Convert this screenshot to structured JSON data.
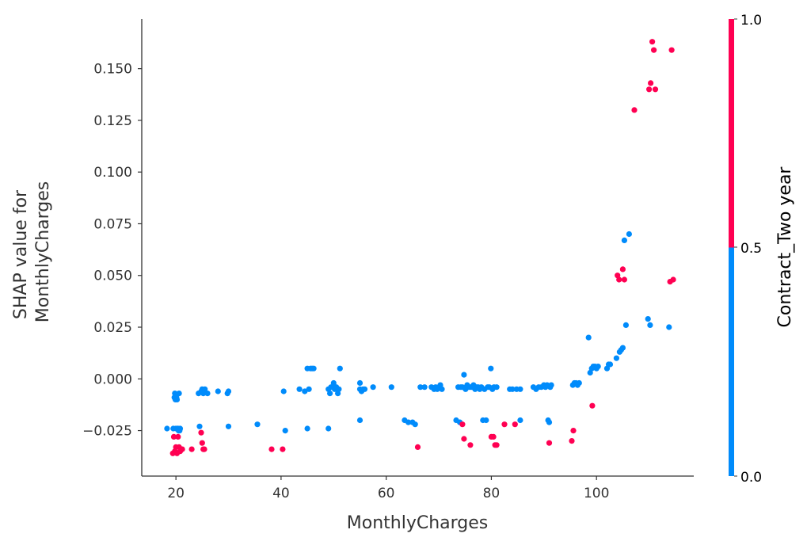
{
  "chart_data": {
    "type": "scatter",
    "title": "",
    "xlabel": "MonthlyCharges",
    "ylabel_lines": [
      "SHAP value for",
      "MonthlyCharges"
    ],
    "xlim": [
      13.5,
      118.5
    ],
    "ylim": [
      -0.047,
      0.174
    ],
    "xticks": [
      20,
      40,
      60,
      80,
      100
    ],
    "yticks": [
      -0.025,
      0.0,
      0.025,
      0.05,
      0.075,
      0.1,
      0.125,
      0.15
    ],
    "xtick_labels": [
      "20",
      "40",
      "60",
      "80",
      "100"
    ],
    "ytick_labels": [
      "−0.025",
      "0.000",
      "0.025",
      "0.050",
      "0.075",
      "0.100",
      "0.125",
      "0.150"
    ],
    "colorbar": {
      "label": "Contract_Two year",
      "ticks": [
        "0.0",
        "0.5",
        "1.0"
      ],
      "low_color": "#008bfb",
      "high_color": "#ff0052"
    },
    "series": [
      {
        "name": "Contract_Two year = 0.0",
        "color": "#008bfb",
        "points": [
          [
            18.3,
            -0.024
          ],
          [
            19.5,
            -0.024
          ],
          [
            19.8,
            -0.007
          ],
          [
            19.9,
            -0.01
          ],
          [
            20.0,
            -0.008
          ],
          [
            20.1,
            -0.009
          ],
          [
            20.2,
            -0.01
          ],
          [
            20.3,
            -0.024
          ],
          [
            20.4,
            -0.024
          ],
          [
            20.5,
            -0.025
          ],
          [
            20.6,
            -0.007
          ],
          [
            20.7,
            -0.025
          ],
          [
            20.8,
            -0.024
          ],
          [
            19.7,
            -0.009
          ],
          [
            20.0,
            -0.024
          ],
          [
            24.3,
            -0.007
          ],
          [
            24.5,
            -0.023
          ],
          [
            24.8,
            -0.006
          ],
          [
            25.0,
            -0.005
          ],
          [
            25.2,
            -0.007
          ],
          [
            25.5,
            -0.005
          ],
          [
            26.0,
            -0.007
          ],
          [
            28.0,
            -0.006
          ],
          [
            29.8,
            -0.007
          ],
          [
            30.0,
            -0.006
          ],
          [
            30.0,
            -0.023
          ],
          [
            35.5,
            -0.022
          ],
          [
            40.5,
            -0.006
          ],
          [
            40.8,
            -0.025
          ],
          [
            43.5,
            -0.005
          ],
          [
            44.5,
            -0.006
          ],
          [
            45.0,
            0.005
          ],
          [
            45.3,
            -0.005
          ],
          [
            45.6,
            0.005
          ],
          [
            45.9,
            0.005
          ],
          [
            46.2,
            0.005
          ],
          [
            45.0,
            -0.024
          ],
          [
            49.0,
            -0.005
          ],
          [
            49.3,
            -0.007
          ],
          [
            49.5,
            -0.004
          ],
          [
            49.8,
            -0.004
          ],
          [
            50.0,
            -0.002
          ],
          [
            50.2,
            -0.005
          ],
          [
            50.5,
            -0.004
          ],
          [
            50.8,
            -0.007
          ],
          [
            51.0,
            -0.005
          ],
          [
            51.2,
            0.005
          ],
          [
            49.0,
            -0.024
          ],
          [
            55.0,
            -0.005
          ],
          [
            55.0,
            -0.002
          ],
          [
            55.3,
            -0.006
          ],
          [
            55.6,
            -0.005
          ],
          [
            55.9,
            -0.005
          ],
          [
            55.0,
            -0.02
          ],
          [
            57.5,
            -0.004
          ],
          [
            61.0,
            -0.004
          ],
          [
            63.5,
            -0.02
          ],
          [
            64.2,
            -0.021
          ],
          [
            65.0,
            -0.021
          ],
          [
            65.5,
            -0.022
          ],
          [
            66.5,
            -0.004
          ],
          [
            67.3,
            -0.004
          ],
          [
            68.6,
            -0.004
          ],
          [
            69.1,
            -0.005
          ],
          [
            69.4,
            -0.004
          ],
          [
            69.7,
            -0.005
          ],
          [
            70.0,
            -0.004
          ],
          [
            70.3,
            -0.003
          ],
          [
            70.6,
            -0.005
          ],
          [
            73.3,
            -0.02
          ],
          [
            73.7,
            -0.004
          ],
          [
            74.0,
            -0.021
          ],
          [
            74.2,
            -0.004
          ],
          [
            74.5,
            -0.004
          ],
          [
            74.8,
            0.002
          ],
          [
            75.1,
            -0.005
          ],
          [
            75.4,
            -0.003
          ],
          [
            75.7,
            -0.004
          ],
          [
            76.0,
            -0.004
          ],
          [
            76.3,
            -0.004
          ],
          [
            76.6,
            -0.003
          ],
          [
            76.9,
            -0.005
          ],
          [
            77.2,
            -0.004
          ],
          [
            77.5,
            -0.004
          ],
          [
            77.8,
            -0.005
          ],
          [
            78.1,
            -0.004
          ],
          [
            78.4,
            -0.02
          ],
          [
            78.7,
            -0.005
          ],
          [
            79.0,
            -0.02
          ],
          [
            79.3,
            -0.004
          ],
          [
            79.6,
            -0.004
          ],
          [
            79.9,
            0.005
          ],
          [
            80.2,
            -0.005
          ],
          [
            80.5,
            -0.004
          ],
          [
            81.0,
            -0.004
          ],
          [
            83.5,
            -0.005
          ],
          [
            84.0,
            -0.005
          ],
          [
            84.8,
            -0.005
          ],
          [
            85.5,
            -0.005
          ],
          [
            85.5,
            -0.02
          ],
          [
            88.0,
            -0.004
          ],
          [
            88.5,
            -0.005
          ],
          [
            89.0,
            -0.004
          ],
          [
            89.5,
            -0.004
          ],
          [
            90.0,
            -0.003
          ],
          [
            90.3,
            -0.004
          ],
          [
            90.6,
            -0.003
          ],
          [
            90.8,
            -0.02
          ],
          [
            91.0,
            -0.021
          ],
          [
            91.2,
            -0.004
          ],
          [
            91.4,
            -0.003
          ],
          [
            95.5,
            -0.003
          ],
          [
            95.8,
            -0.002
          ],
          [
            96.1,
            -0.002
          ],
          [
            96.4,
            -0.003
          ],
          [
            96.7,
            -0.002
          ],
          [
            98.5,
            0.02
          ],
          [
            98.8,
            0.003
          ],
          [
            99.1,
            0.005
          ],
          [
            99.4,
            0.006
          ],
          [
            99.7,
            0.006
          ],
          [
            100.0,
            0.005
          ],
          [
            100.3,
            0.006
          ],
          [
            102.0,
            0.005
          ],
          [
            102.3,
            0.007
          ],
          [
            102.6,
            0.007
          ],
          [
            103.8,
            0.01
          ],
          [
            104.4,
            0.013
          ],
          [
            104.7,
            0.014
          ],
          [
            105.0,
            0.015
          ],
          [
            105.3,
            0.067
          ],
          [
            105.6,
            0.026
          ],
          [
            106.2,
            0.07
          ],
          [
            109.8,
            0.029
          ],
          [
            110.2,
            0.026
          ],
          [
            113.8,
            0.025
          ]
        ]
      },
      {
        "name": "Contract_Two year = 1.0",
        "color": "#ff0052",
        "points": [
          [
            19.4,
            -0.036
          ],
          [
            19.6,
            -0.028
          ],
          [
            19.8,
            -0.035
          ],
          [
            20.0,
            -0.033
          ],
          [
            20.2,
            -0.036
          ],
          [
            20.4,
            -0.028
          ],
          [
            20.6,
            -0.033
          ],
          [
            20.8,
            -0.035
          ],
          [
            21.0,
            -0.034
          ],
          [
            21.2,
            -0.034
          ],
          [
            23.0,
            -0.034
          ],
          [
            24.8,
            -0.026
          ],
          [
            25.0,
            -0.031
          ],
          [
            25.2,
            -0.034
          ],
          [
            25.4,
            -0.034
          ],
          [
            38.2,
            -0.034
          ],
          [
            40.3,
            -0.034
          ],
          [
            66.0,
            -0.033
          ],
          [
            74.5,
            -0.022
          ],
          [
            74.8,
            -0.029
          ],
          [
            76.0,
            -0.032
          ],
          [
            80.0,
            -0.028
          ],
          [
            80.4,
            -0.028
          ],
          [
            80.7,
            -0.032
          ],
          [
            81.0,
            -0.032
          ],
          [
            82.5,
            -0.022
          ],
          [
            84.5,
            -0.022
          ],
          [
            91.0,
            -0.031
          ],
          [
            95.3,
            -0.03
          ],
          [
            95.6,
            -0.025
          ],
          [
            99.2,
            -0.013
          ],
          [
            104.0,
            0.05
          ],
          [
            104.3,
            0.048
          ],
          [
            105.0,
            0.053
          ],
          [
            105.3,
            0.048
          ],
          [
            107.2,
            0.13
          ],
          [
            110.0,
            0.14
          ],
          [
            110.3,
            0.143
          ],
          [
            110.6,
            0.163
          ],
          [
            110.9,
            0.159
          ],
          [
            111.2,
            0.14
          ],
          [
            114.0,
            0.047
          ],
          [
            114.3,
            0.159
          ],
          [
            114.6,
            0.048
          ]
        ]
      }
    ]
  }
}
